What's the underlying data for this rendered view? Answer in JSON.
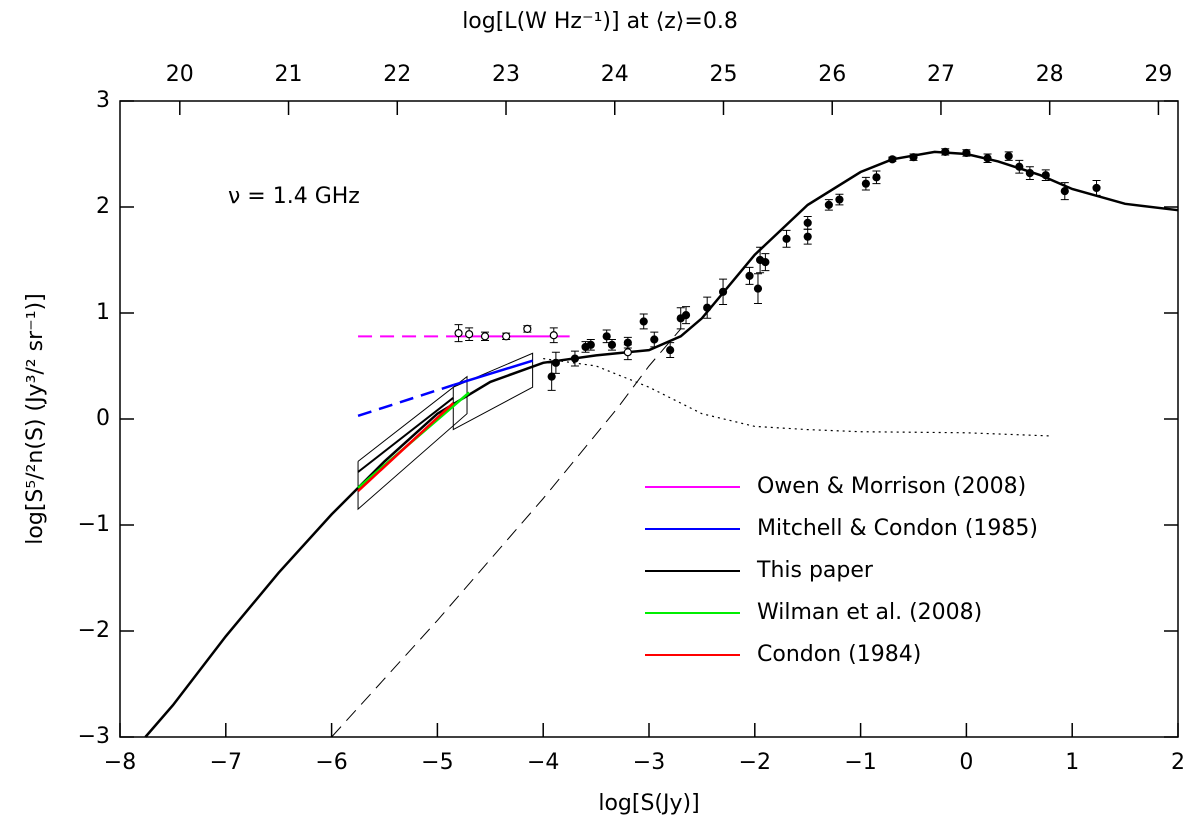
{
  "chart_data": {
    "type": "line",
    "x2label": "log[L(W Hz⁻¹)] at ⟨z⟩=0.8",
    "xlabel": "log[S(Jy)]",
    "ylabel": "log[S⁵/²n(S) (Jy³/² sr⁻¹)]",
    "annotation": "ν = 1.4 GHz",
    "xlim": [
      -8,
      2
    ],
    "ylim": [
      -3,
      3
    ],
    "x2lim": [
      19.45,
      29.18
    ],
    "xticks": [
      {
        "value": -8,
        "label": "−8"
      },
      {
        "value": -7,
        "label": "−7"
      },
      {
        "value": -6,
        "label": "−6"
      },
      {
        "value": -5,
        "label": "−5"
      },
      {
        "value": -4,
        "label": "−4"
      },
      {
        "value": -3,
        "label": "−3"
      },
      {
        "value": -2,
        "label": "−2"
      },
      {
        "value": -1,
        "label": "−1"
      },
      0,
      1,
      2
    ],
    "yticks": [
      {
        "value": -3,
        "label": "−3"
      },
      {
        "value": -2,
        "label": "−2"
      },
      {
        "value": -1,
        "label": "−1"
      },
      0,
      1,
      2,
      3
    ],
    "x2ticks": [
      20,
      21,
      22,
      23,
      24,
      25,
      26,
      27,
      28,
      29
    ],
    "legend": "lower right",
    "series": [
      {
        "type": "line",
        "color": "#000000",
        "dash": "solid",
        "width": 2.5,
        "x": [
          -7.76,
          -7.5,
          -7,
          -6.5,
          -6,
          -5.5,
          -5,
          -4.5,
          -4,
          -3.5,
          -3,
          -2.7,
          -2.5,
          -2,
          -1.5,
          -1,
          -0.7,
          -0.3,
          0,
          0.3,
          0.7,
          1,
          1.5,
          2
        ],
        "values": [
          -3,
          -2.7,
          -2.05,
          -1.45,
          -0.9,
          -0.4,
          0.05,
          0.35,
          0.53,
          0.6,
          0.65,
          0.78,
          0.95,
          1.55,
          2.02,
          2.33,
          2.45,
          2.52,
          2.5,
          2.43,
          2.3,
          2.17,
          2.03,
          1.97
        ]
      },
      {
        "type": "line",
        "color": "#000000",
        "dash": "dashed",
        "width": 1,
        "x": [
          -6,
          -5,
          -4,
          -3.3,
          -3,
          -2.7
        ],
        "values": [
          -3,
          -1.9,
          -0.75,
          0.1,
          0.5,
          0.85
        ]
      },
      {
        "type": "line",
        "color": "#000000",
        "dash": "dotted",
        "width": 1.2,
        "x": [
          -4,
          -3.5,
          -3,
          -2.5,
          -2,
          -1.5,
          -1,
          0,
          0.8
        ],
        "values": [
          0.57,
          0.5,
          0.3,
          0.05,
          -0.07,
          -0.1,
          -0.12,
          -0.13,
          -0.16
        ]
      },
      {
        "type": "line",
        "color": "#000000",
        "dash": "solid",
        "width": 1,
        "x": [
          -5.75,
          -4.72,
          -4.72,
          -5.75,
          -5.75
        ],
        "values": [
          -0.4,
          0.4,
          0.05,
          -0.85,
          -0.4
        ]
      },
      {
        "type": "line",
        "color": "#000000",
        "dash": "solid",
        "width": 1,
        "x": [
          -4.85,
          -4.1,
          -4.1,
          -4.85,
          -4.85
        ],
        "values": [
          0.3,
          0.62,
          0.3,
          -0.1,
          0.3
        ]
      },
      {
        "type": "line",
        "color": "#ff00ff",
        "dash": "dashed",
        "width": 2,
        "x": [
          -5.75,
          -4.85
        ],
        "values": [
          0.78,
          0.78
        ]
      },
      {
        "type": "line",
        "name": "Owen & Morrison (2008)",
        "color": "#ff00ff",
        "dash": "solid",
        "width": 2,
        "x": [
          -4.85,
          -3.75
        ],
        "values": [
          0.78,
          0.78
        ]
      },
      {
        "type": "line",
        "color": "#0000ff",
        "dash": "dashed",
        "width": 2.5,
        "x": [
          -5.75,
          -4.85
        ],
        "values": [
          0.03,
          0.32
        ]
      },
      {
        "type": "line",
        "name": "Mitchell & Condon (1985)",
        "color": "#0000ff",
        "dash": "solid",
        "width": 2.5,
        "x": [
          -4.85,
          -4.1
        ],
        "values": [
          0.32,
          0.55
        ]
      },
      {
        "type": "line",
        "name": "This paper",
        "color": "#000000",
        "dash": "solid",
        "width": 2,
        "x": [
          -5.75,
          -4.85
        ],
        "values": [
          -0.5,
          0.2
        ]
      },
      {
        "type": "line",
        "name": "Wilman et al. (2008)",
        "color": "#00ee00",
        "dash": "solid",
        "width": 2.5,
        "x": [
          -5.75,
          -4.7
        ],
        "values": [
          -0.65,
          0.25
        ]
      },
      {
        "type": "line",
        "name": "Condon (1984)",
        "color": "#ff0000",
        "dash": "solid",
        "width": 2.5,
        "x": [
          -5.75,
          -4.85
        ],
        "values": [
          -0.68,
          0.15
        ]
      },
      {
        "type": "errorbar",
        "color": "#000000",
        "filled": true,
        "x": [
          -3.92,
          -3.88,
          -3.7,
          -3.6,
          -3.55,
          -3.4,
          -3.35,
          -3.2,
          -3.05,
          -2.95,
          -2.8,
          -2.7,
          -2.65,
          -2.45,
          -2.3,
          -2.05,
          -1.95,
          -1.97,
          -1.9,
          -1.7,
          -1.5,
          -1.5,
          -1.3,
          -1.2,
          -0.95,
          -0.85,
          -0.7,
          -0.5,
          -0.2,
          0,
          0.2,
          0.4,
          0.5,
          0.6,
          0.75,
          0.93,
          1.23
        ],
        "values": [
          0.4,
          0.53,
          0.57,
          0.68,
          0.7,
          0.78,
          0.7,
          0.72,
          0.92,
          0.75,
          0.65,
          0.95,
          0.98,
          1.05,
          1.2,
          1.35,
          1.5,
          1.23,
          1.48,
          1.7,
          1.72,
          1.85,
          2.02,
          2.07,
          2.22,
          2.28,
          2.45,
          2.47,
          2.52,
          2.51,
          2.46,
          2.48,
          2.38,
          2.32,
          2.3,
          2.15,
          2.18
        ],
        "errors": [
          0.13,
          0.1,
          0.07,
          0.05,
          0.05,
          0.06,
          0.05,
          0.05,
          0.07,
          0.07,
          0.07,
          0.1,
          0.08,
          0.1,
          0.12,
          0.08,
          0.12,
          0.14,
          0.08,
          0.08,
          0.07,
          0.06,
          0.05,
          0.05,
          0.06,
          0.06,
          0.02,
          0.03,
          0.03,
          0.03,
          0.04,
          0.04,
          0.06,
          0.06,
          0.05,
          0.08,
          0.07
        ]
      },
      {
        "type": "errorbar",
        "color": "#000000",
        "filled": false,
        "x": [
          -4.8,
          -4.7,
          -4.55,
          -4.35,
          -4.15,
          -3.9,
          -3.2
        ],
        "values": [
          0.81,
          0.8,
          0.78,
          0.78,
          0.85,
          0.79,
          0.63
        ],
        "errors": [
          0.08,
          0.06,
          0.04,
          0.03,
          0.03,
          0.07,
          0.07
        ]
      }
    ]
  }
}
